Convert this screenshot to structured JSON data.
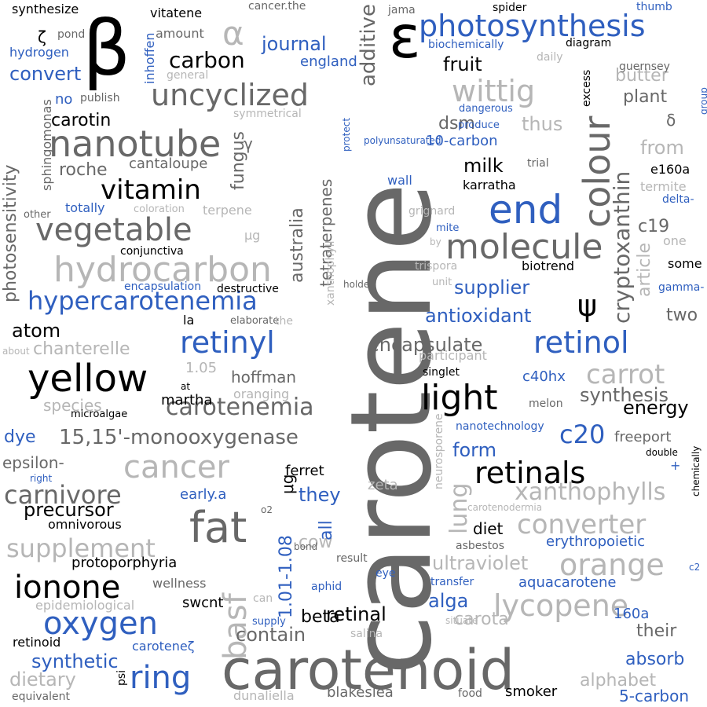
{
  "colors": {
    "black": "#000000",
    "dark_gray": "#686868",
    "light_gray": "#b6b6b6",
    "blue": "#2f5fbf"
  },
  "words": [
    {
      "text": "carotene",
      "color": "dark_gray"
    },
    {
      "text": "carotenoid",
      "color": "dark_gray"
    },
    {
      "text": "β",
      "color": "black"
    },
    {
      "text": "ε",
      "color": "black"
    },
    {
      "text": "α",
      "color": "light_gray"
    },
    {
      "text": "photosynthesis",
      "color": "blue"
    },
    {
      "text": "colour",
      "color": "dark_gray"
    },
    {
      "text": "nanotube",
      "color": "dark_gray"
    },
    {
      "text": "uncyclized",
      "color": "dark_gray"
    },
    {
      "text": "vegetable",
      "color": "dark_gray"
    },
    {
      "text": "hydrocarbon",
      "color": "light_gray"
    },
    {
      "text": "hypercarotenemia",
      "color": "blue"
    },
    {
      "text": "yellow",
      "color": "black"
    },
    {
      "text": "vitamin",
      "color": "black"
    },
    {
      "text": "retinyl",
      "color": "blue"
    },
    {
      "text": "retinol",
      "color": "blue"
    },
    {
      "text": "end",
      "color": "blue"
    },
    {
      "text": "molecule",
      "color": "dark_gray"
    },
    {
      "text": "light",
      "color": "black"
    },
    {
      "text": "fat",
      "color": "dark_gray"
    },
    {
      "text": "ionone",
      "color": "black"
    },
    {
      "text": "oxygen",
      "color": "blue"
    },
    {
      "text": "ring",
      "color": "blue"
    },
    {
      "text": "cancer",
      "color": "light_gray"
    },
    {
      "text": "carrot",
      "color": "light_gray"
    },
    {
      "text": "orange",
      "color": "light_gray"
    },
    {
      "text": "lycopene",
      "color": "light_gray"
    },
    {
      "text": "retinals",
      "color": "black"
    },
    {
      "text": "converter",
      "color": "light_gray"
    },
    {
      "text": "carotenemia",
      "color": "dark_gray"
    },
    {
      "text": "basf",
      "color": "light_gray"
    },
    {
      "text": "carnivore",
      "color": "dark_gray"
    },
    {
      "text": "supplement",
      "color": "light_gray"
    },
    {
      "text": "15,15'-monooxygenase",
      "color": "dark_gray"
    },
    {
      "text": "wittig",
      "color": "light_gray"
    },
    {
      "text": "cryptoxanthin",
      "color": "dark_gray"
    },
    {
      "text": "ψ",
      "color": "black"
    },
    {
      "text": "lung",
      "color": "light_gray"
    },
    {
      "text": "xanthophylls",
      "color": "light_gray"
    },
    {
      "text": "c20",
      "color": "blue"
    },
    {
      "text": "carbon",
      "color": "black"
    },
    {
      "text": "journal",
      "color": "blue"
    },
    {
      "text": "additive",
      "color": "dark_gray"
    },
    {
      "text": "fruit",
      "color": "black"
    },
    {
      "text": "convert",
      "color": "blue"
    },
    {
      "text": "atom",
      "color": "black"
    },
    {
      "text": "antioxidant",
      "color": "blue"
    },
    {
      "text": "encapsulate",
      "color": "dark_gray"
    },
    {
      "text": "ultraviolet",
      "color": "light_gray"
    },
    {
      "text": "synthetic",
      "color": "blue"
    },
    {
      "text": "contain",
      "color": "dark_gray"
    },
    {
      "text": "retinal",
      "color": "black"
    },
    {
      "text": "alga",
      "color": "blue"
    },
    {
      "text": "dietary",
      "color": "light_gray"
    },
    {
      "text": "precursor",
      "color": "black"
    },
    {
      "text": "synthesis",
      "color": "dark_gray"
    },
    {
      "text": "energy",
      "color": "black"
    },
    {
      "text": "supplier",
      "color": "blue"
    },
    {
      "text": "chanterelle",
      "color": "light_gray"
    },
    {
      "text": "butter",
      "color": "light_gray"
    },
    {
      "text": "plant",
      "color": "dark_gray"
    },
    {
      "text": "milk",
      "color": "black"
    },
    {
      "text": "dsm",
      "color": "dark_gray"
    },
    {
      "text": "thus",
      "color": "light_gray"
    },
    {
      "text": "australia",
      "color": "dark_gray"
    },
    {
      "text": "tetraterpenes",
      "color": "dark_gray"
    },
    {
      "text": "fungus",
      "color": "dark_gray"
    },
    {
      "text": "roche",
      "color": "dark_gray"
    },
    {
      "text": "carotin",
      "color": "black"
    },
    {
      "text": "photosensitivity",
      "color": "dark_gray"
    },
    {
      "text": "from",
      "color": "light_gray"
    },
    {
      "text": "article",
      "color": "light_gray"
    },
    {
      "text": "c19",
      "color": "dark_gray"
    },
    {
      "text": "two",
      "color": "dark_gray"
    },
    {
      "text": "cow",
      "color": "light_gray"
    },
    {
      "text": "diet",
      "color": "black"
    },
    {
      "text": "form",
      "color": "blue"
    },
    {
      "text": "freeport",
      "color": "dark_gray"
    },
    {
      "text": "erythropoietic",
      "color": "blue"
    },
    {
      "text": "aquacarotene",
      "color": "blue"
    },
    {
      "text": "their",
      "color": "dark_gray"
    },
    {
      "text": "absorb",
      "color": "blue"
    },
    {
      "text": "alphabet",
      "color": "light_gray"
    },
    {
      "text": "5-carbon",
      "color": "blue"
    },
    {
      "text": "smoker",
      "color": "black"
    },
    {
      "text": "blakeslea",
      "color": "dark_gray"
    },
    {
      "text": "160a",
      "color": "blue"
    },
    {
      "text": "carota",
      "color": "light_gray"
    },
    {
      "text": "beta",
      "color": "black"
    },
    {
      "text": "1.01-1.08",
      "color": "blue"
    },
    {
      "text": "all",
      "color": "blue"
    },
    {
      "text": "they",
      "color": "blue"
    },
    {
      "text": "ferret",
      "color": "black"
    },
    {
      "text": "early.a",
      "color": "blue"
    },
    {
      "text": "protoporphyria",
      "color": "black"
    },
    {
      "text": "omnivorous",
      "color": "black"
    },
    {
      "text": "epsilon-",
      "color": "dark_gray"
    },
    {
      "text": "dye",
      "color": "blue"
    },
    {
      "text": "martha",
      "color": "black"
    },
    {
      "text": "hoffman",
      "color": "dark_gray"
    },
    {
      "text": "species",
      "color": "light_gray"
    },
    {
      "text": "1.05",
      "color": "light_gray"
    },
    {
      "text": "la",
      "color": "black"
    },
    {
      "text": "retinoid",
      "color": "black"
    },
    {
      "text": "caroteneζ",
      "color": "blue"
    },
    {
      "text": "psi",
      "color": "black"
    },
    {
      "text": "swcnt",
      "color": "black"
    },
    {
      "text": "wellness",
      "color": "dark_gray"
    },
    {
      "text": "epidemiological",
      "color": "light_gray"
    },
    {
      "text": "equivalent",
      "color": "dark_gray"
    },
    {
      "text": "μg",
      "color": "black"
    },
    {
      "text": "μg",
      "color": "light_gray"
    },
    {
      "text": "gamma-",
      "color": "blue"
    },
    {
      "text": "delta-",
      "color": "blue"
    },
    {
      "text": "some",
      "color": "black"
    },
    {
      "text": "one",
      "color": "light_gray"
    },
    {
      "text": "e160a",
      "color": "black"
    },
    {
      "text": "termite",
      "color": "light_gray"
    },
    {
      "text": "trial",
      "color": "dark_gray"
    },
    {
      "text": "biotrend",
      "color": "black"
    },
    {
      "text": "karratha",
      "color": "black"
    },
    {
      "text": "10-carbon",
      "color": "blue"
    },
    {
      "text": "spider",
      "color": "black"
    },
    {
      "text": "diagram",
      "color": "black"
    },
    {
      "text": "excess",
      "color": "black"
    },
    {
      "text": "daily",
      "color": "light_gray"
    },
    {
      "text": "guernsey",
      "color": "dark_gray"
    },
    {
      "text": "thumb",
      "color": "blue"
    },
    {
      "text": "group",
      "color": "blue"
    },
    {
      "text": "δ",
      "color": "dark_gray"
    },
    {
      "text": "γ",
      "color": "dark_gray"
    },
    {
      "text": "ζ",
      "color": "black"
    },
    {
      "text": "synthesize",
      "color": "black"
    },
    {
      "text": "pond",
      "color": "dark_gray"
    },
    {
      "text": "hydrogen",
      "color": "blue"
    },
    {
      "text": "inhoffen",
      "color": "blue"
    },
    {
      "text": "vitatene",
      "color": "black"
    },
    {
      "text": "amount",
      "color": "dark_gray"
    },
    {
      "text": "cancer.the",
      "color": "dark_gray"
    },
    {
      "text": "jama",
      "color": "dark_gray"
    },
    {
      "text": "england",
      "color": "blue"
    },
    {
      "text": "biochemically",
      "color": "blue"
    },
    {
      "text": "general",
      "color": "light_gray"
    },
    {
      "text": "publish",
      "color": "dark_gray"
    },
    {
      "text": "no",
      "color": "blue"
    },
    {
      "text": "symmetrical",
      "color": "light_gray"
    },
    {
      "text": "protect",
      "color": "blue"
    },
    {
      "text": "polyunsaturated",
      "color": "blue"
    },
    {
      "text": "dangerous",
      "color": "blue"
    },
    {
      "text": "produce",
      "color": "blue"
    },
    {
      "text": "sphingomonas",
      "color": "dark_gray"
    },
    {
      "text": "cantaloupe",
      "color": "dark_gray"
    },
    {
      "text": "terpene",
      "color": "light_gray"
    },
    {
      "text": "coloration",
      "color": "light_gray"
    },
    {
      "text": "totally",
      "color": "blue"
    },
    {
      "text": "other",
      "color": "dark_gray"
    },
    {
      "text": "conjunctiva",
      "color": "black"
    },
    {
      "text": "encapsulation",
      "color": "blue"
    },
    {
      "text": "destructive",
      "color": "black"
    },
    {
      "text": "elaborate",
      "color": "dark_gray"
    },
    {
      "text": "the",
      "color": "light_gray"
    },
    {
      "text": "about",
      "color": "light_gray"
    },
    {
      "text": "xanthophyll",
      "color": "light_gray"
    },
    {
      "text": "holder",
      "color": "dark_gray"
    },
    {
      "text": "unit",
      "color": "light_gray"
    },
    {
      "text": "trispora",
      "color": "light_gray"
    },
    {
      "text": "by",
      "color": "light_gray"
    },
    {
      "text": "mite",
      "color": "blue"
    },
    {
      "text": "grignard",
      "color": "light_gray"
    },
    {
      "text": "wall",
      "color": "blue"
    },
    {
      "text": "participant",
      "color": "light_gray"
    },
    {
      "text": "singlet",
      "color": "black"
    },
    {
      "text": "c40hx",
      "color": "blue"
    },
    {
      "text": "melon",
      "color": "dark_gray"
    },
    {
      "text": "nanotechnology",
      "color": "blue"
    },
    {
      "text": "neurosporene",
      "color": "light_gray"
    },
    {
      "text": "zeta",
      "color": "light_gray"
    },
    {
      "text": "oranging",
      "color": "light_gray"
    },
    {
      "text": "at",
      "color": "black"
    },
    {
      "text": "microalgae",
      "color": "black"
    },
    {
      "text": "right",
      "color": "blue"
    },
    {
      "text": "double",
      "color": "black"
    },
    {
      "text": "chemically",
      "color": "black"
    },
    {
      "text": "+",
      "color": "blue"
    },
    {
      "text": "carotenodermia",
      "color": "light_gray"
    },
    {
      "text": "asbestos",
      "color": "dark_gray"
    },
    {
      "text": "o2",
      "color": "dark_gray"
    },
    {
      "text": "bond",
      "color": "dark_gray"
    },
    {
      "text": "result",
      "color": "dark_gray"
    },
    {
      "text": "aphid",
      "color": "blue"
    },
    {
      "text": "eye",
      "color": "blue"
    },
    {
      "text": "transfer",
      "color": "blue"
    },
    {
      "text": "can",
      "color": "light_gray"
    },
    {
      "text": "supply",
      "color": "blue"
    },
    {
      "text": "salina",
      "color": "light_gray"
    },
    {
      "text": "situate",
      "color": "light_gray"
    },
    {
      "text": "dunaliella",
      "color": "light_gray"
    },
    {
      "text": "food",
      "color": "dark_gray"
    },
    {
      "text": "c2",
      "color": "blue"
    }
  ]
}
